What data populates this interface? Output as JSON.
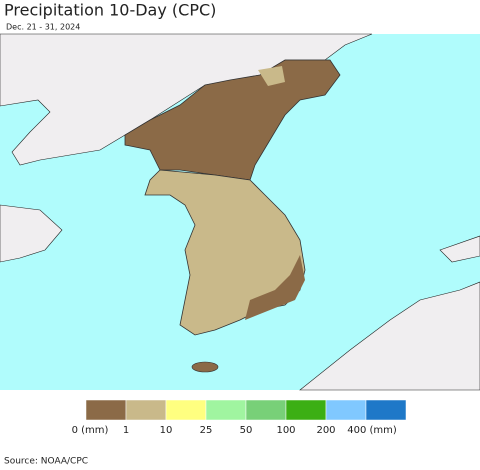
{
  "header": {
    "title": "Precipitation 10-Day (CPC)",
    "subtitle": "Dec. 21 - 31, 2024"
  },
  "legend": {
    "labels": [
      "0 (mm)",
      "1",
      "10",
      "25",
      "50",
      "100",
      "200",
      "400 (mm)"
    ],
    "colors": [
      "#8b6a47",
      "#c9b98a",
      "#ffff80",
      "#a0f5a0",
      "#78d078",
      "#3caf14",
      "#80c8ff",
      "#1e78c8"
    ]
  },
  "footer": {
    "source": "Source: NOAA/CPC"
  }
}
